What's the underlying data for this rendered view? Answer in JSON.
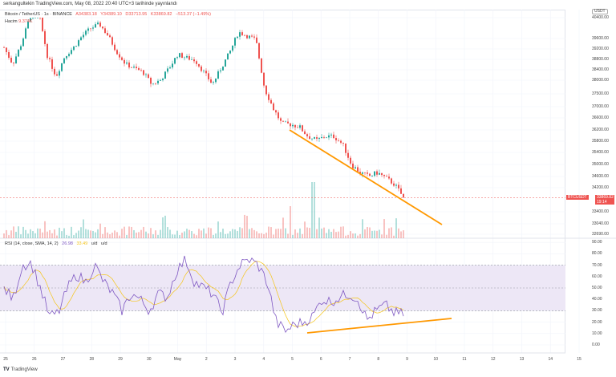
{
  "header": {
    "attribution": "serkangultekin TradingView.com, May 08, 2022 20:40 UTC+3 tarihinde yayınlandı"
  },
  "legend": {
    "symbol": "Bitcoin / TetherUS · 1s · BINANCE",
    "open": "A34383.18",
    "high": "Y34389.10",
    "low": "D33713.95",
    "close": "K33869.82",
    "change": "−513.37 (−1.49%)",
    "volume_label": "Hacim",
    "volume_value": "9.374K"
  },
  "rsi_legend": {
    "label": "RSI (14, close, SMA, 14, 2)",
    "rsi": "26.98",
    "sma": "33.49",
    "ud1": "u/d",
    "ud2": "u/d"
  },
  "price_axis": {
    "currency": "USDT",
    "ticks": [
      "40400.00",
      "39600.00",
      "39200.00",
      "38800.00",
      "38400.00",
      "38000.00",
      "37500.00",
      "37000.00",
      "36600.00",
      "36200.00",
      "35800.00",
      "35400.00",
      "35000.00",
      "34600.00",
      "34200.00",
      "33400.00",
      "33040.00",
      "32690.00"
    ]
  },
  "last_price": {
    "symbol": "BTCUSDT",
    "price": "33869.82",
    "countdown": "19:14"
  },
  "rsi_axis": {
    "ticks": [
      "90.00",
      "80.00",
      "70.00",
      "60.00",
      "50.00",
      "40.00",
      "30.00",
      "20.00",
      "10.00",
      "0.00"
    ]
  },
  "time_axis": {
    "ticks": [
      "25",
      "26",
      "27",
      "28",
      "29",
      "30",
      "May",
      "2",
      "3",
      "4",
      "5",
      "6",
      "7",
      "8",
      "9",
      "10",
      "11",
      "12",
      "13",
      "14",
      "15"
    ]
  },
  "footer": {
    "brand": "TradingView"
  },
  "colors": {
    "up": "#26a69a",
    "down": "#ef5350",
    "rsi": "#7e57c2",
    "sma": "#f5c518",
    "trend": "#ff9800",
    "band": "#ede7f6"
  },
  "chart_data": {
    "type": "candlestick",
    "symbol": "BTCUSDT",
    "price_path": [
      39250,
      38620,
      39400,
      40450,
      40600,
      38920,
      38150,
      38920,
      39250,
      39700,
      40000,
      40150,
      39700,
      39080,
      38620,
      38460,
      38310,
      37850,
      38000,
      38460,
      38990,
      38860,
      38770,
      38310,
      37850,
      38460,
      39080,
      39850,
      39700,
      39550,
      37700,
      36940,
      36390,
      36390,
      36310,
      35970,
      35830,
      35970,
      35970,
      35690,
      35000,
      34730,
      34600,
      34730,
      34540,
      34310,
      33870
    ],
    "rsi_path": [
      50,
      40,
      70,
      72,
      50,
      25,
      28,
      50,
      62,
      55,
      70,
      55,
      45,
      30,
      45,
      40,
      30,
      45,
      42,
      65,
      75,
      55,
      50,
      45,
      28,
      55,
      70,
      75,
      70,
      55,
      20,
      12,
      18,
      20,
      25,
      40,
      38,
      42,
      45,
      40,
      22,
      30,
      35,
      28,
      27
    ],
    "rsi_band": [
      30,
      70
    ],
    "trendlines": [
      {
        "pane": "price",
        "from": [
          36380,
          "May 5"
        ],
        "to": [
          33000,
          "May 10"
        ]
      },
      {
        "pane": "rsi",
        "from": [
          10,
          "May 5"
        ],
        "to": [
          23,
          "May 10"
        ]
      }
    ]
  }
}
